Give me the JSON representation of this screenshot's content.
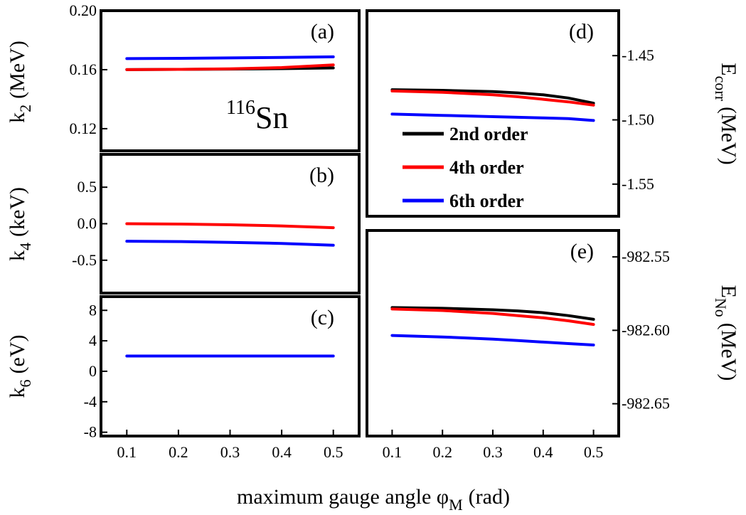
{
  "figure": {
    "xlabel_main": "maximum gauge angle φ",
    "xlabel_sub": "M",
    "xlabel_tail": "(rad)",
    "nucleus_mass": "116",
    "nucleus_symbol": "Sn"
  },
  "colors": {
    "2nd order": "#000000",
    "4th order": "#ff0000",
    "6th order": "#0000ff"
  },
  "legend": [
    "2nd order",
    "4th order",
    "6th order"
  ],
  "chart_data": [
    {
      "id": "a",
      "panel_label": "(a)",
      "type": "line",
      "ylabel_main": "k",
      "ylabel_sub": "2",
      "ylabel_unit": "(MeV)",
      "x": [
        0.1,
        0.2,
        0.3,
        0.4,
        0.5
      ],
      "xlim": [
        0.05,
        0.55
      ],
      "ylim": [
        0.105,
        0.2
      ],
      "yticks": [
        0.12,
        0.16,
        0.2
      ],
      "yticklabels": [
        "0.12",
        "0.16",
        "0.20"
      ],
      "xticks": [],
      "xticklabels": [],
      "series": [
        {
          "name": "2nd order",
          "values": [
            0.16,
            0.1602,
            0.1604,
            0.1607,
            0.1612
          ]
        },
        {
          "name": "4th order",
          "values": [
            0.16,
            0.1602,
            0.1606,
            0.1614,
            0.1632
          ]
        },
        {
          "name": "6th order",
          "values": [
            0.1675,
            0.1677,
            0.168,
            0.1683,
            0.1687
          ]
        }
      ]
    },
    {
      "id": "b",
      "panel_label": "(b)",
      "type": "line",
      "ylabel_main": "k",
      "ylabel_sub": "4",
      "ylabel_unit": "(keV)",
      "x": [
        0.1,
        0.2,
        0.3,
        0.4,
        0.5
      ],
      "xlim": [
        0.05,
        0.55
      ],
      "ylim": [
        -0.95,
        0.95
      ],
      "yticks": [
        -0.5,
        0.0,
        0.5
      ],
      "yticklabels": [
        "-0.5",
        "0.0",
        "0.5"
      ],
      "xticks": [],
      "xticklabels": [],
      "series": [
        {
          "name": "4th order",
          "values": [
            0.0,
            -0.005,
            -0.015,
            -0.03,
            -0.055
          ]
        },
        {
          "name": "6th order",
          "values": [
            -0.24,
            -0.245,
            -0.255,
            -0.27,
            -0.295
          ]
        }
      ]
    },
    {
      "id": "c",
      "panel_label": "(c)",
      "type": "line",
      "ylabel_main": "k",
      "ylabel_sub": "6",
      "ylabel_unit": "(eV)",
      "x": [
        0.1,
        0.2,
        0.3,
        0.4,
        0.5
      ],
      "xlim": [
        0.05,
        0.55
      ],
      "ylim": [
        -8.5,
        9.8
      ],
      "yticks": [
        -8,
        -4,
        0,
        4,
        8
      ],
      "yticklabels": [
        "-8",
        "-4",
        "0",
        "4",
        "8"
      ],
      "xticks": [
        0.1,
        0.2,
        0.3,
        0.4,
        0.5
      ],
      "xticklabels": [
        "0.1",
        "0.2",
        "0.3",
        "0.4",
        "0.5"
      ],
      "series": [
        {
          "name": "6th order",
          "values": [
            2.0,
            2.0,
            2.0,
            2.0,
            2.0
          ]
        }
      ]
    },
    {
      "id": "d",
      "panel_label": "(d)",
      "type": "line",
      "ylabel_main": "E",
      "ylabel_sub": "corr",
      "ylabel_unit": "(MeV)",
      "x": [
        0.1,
        0.2,
        0.3,
        0.35,
        0.4,
        0.45,
        0.5
      ],
      "xlim": [
        0.05,
        0.55
      ],
      "ylim": [
        -1.575,
        -1.415
      ],
      "yticks": [
        -1.45,
        -1.5,
        -1.55
      ],
      "yticklabels": [
        "-1.45",
        "-1.50",
        "-1.55"
      ],
      "xticks": [],
      "xticklabels": [],
      "series": [
        {
          "name": "2nd order",
          "values": [
            -1.4765,
            -1.477,
            -1.478,
            -1.479,
            -1.4805,
            -1.483,
            -1.487
          ]
        },
        {
          "name": "4th order",
          "values": [
            -1.4775,
            -1.4785,
            -1.4805,
            -1.482,
            -1.484,
            -1.486,
            -1.4885
          ]
        },
        {
          "name": "6th order",
          "values": [
            -1.4955,
            -1.4965,
            -1.4975,
            -1.498,
            -1.4985,
            -1.499,
            -1.5005
          ]
        }
      ]
    },
    {
      "id": "e",
      "panel_label": "(e)",
      "type": "line",
      "ylabel_main": "E",
      "ylabel_sub": "No",
      "ylabel_unit": "(MeV)",
      "x": [
        0.1,
        0.2,
        0.3,
        0.35,
        0.4,
        0.45,
        0.5
      ],
      "xlim": [
        0.05,
        0.55
      ],
      "ylim": [
        -982.672,
        -982.532
      ],
      "yticks": [
        -982.55,
        -982.6,
        -982.65
      ],
      "yticklabels": [
        "-982.55",
        "-982.60",
        "-982.65"
      ],
      "xticks": [
        0.1,
        0.2,
        0.3,
        0.4,
        0.5
      ],
      "xticklabels": [
        "0.1",
        "0.2",
        "0.3",
        "0.4",
        "0.5"
      ],
      "series": [
        {
          "name": "2nd order",
          "values": [
            -982.5845,
            -982.585,
            -982.586,
            -982.5868,
            -982.588,
            -982.59,
            -982.5925
          ]
        },
        {
          "name": "4th order",
          "values": [
            -982.5855,
            -982.5865,
            -982.5885,
            -982.59,
            -982.5915,
            -982.5935,
            -982.596
          ]
        },
        {
          "name": "6th order",
          "values": [
            -982.6035,
            -982.6045,
            -982.606,
            -982.607,
            -982.608,
            -982.609,
            -982.61
          ]
        }
      ]
    }
  ]
}
